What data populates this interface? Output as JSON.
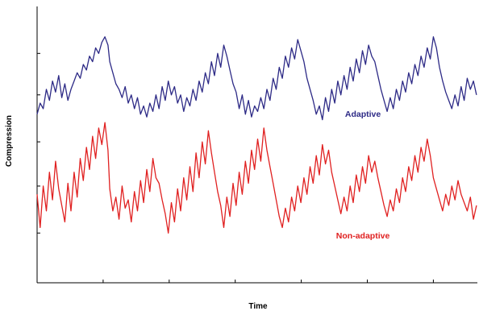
{
  "chart_data": {
    "type": "line",
    "xlabel": "Time",
    "ylabel": "Compression",
    "xlim": [
      0,
      100
    ],
    "ylim": [
      0,
      100
    ],
    "x_ticks": [
      15,
      30,
      45,
      60,
      75,
      90
    ],
    "y_ticks": [
      18,
      35,
      51,
      68,
      83
    ],
    "grid": false,
    "series": [
      {
        "name": "Adaptive",
        "color": "#2d2a86",
        "x": [
          0,
          0.7,
          1.4,
          2.1,
          2.8,
          3.5,
          4.2,
          4.9,
          5.6,
          6.3,
          7,
          7.7,
          8.4,
          9.1,
          9.8,
          10.5,
          11.2,
          11.9,
          12.6,
          13.3,
          14,
          14.7,
          15.4,
          16.1,
          16.5,
          17.2,
          17.9,
          18.6,
          19.3,
          20,
          20.7,
          21.4,
          22.1,
          22.8,
          23.5,
          24.2,
          24.9,
          25.6,
          26.3,
          27,
          27.7,
          28.4,
          29.1,
          29.8,
          30.5,
          31.2,
          31.9,
          32.6,
          33.3,
          34,
          34.7,
          35.4,
          36.1,
          36.8,
          37.5,
          38.2,
          38.9,
          39.6,
          40.3,
          41,
          41.7,
          42.4,
          43.1,
          43.8,
          44.5,
          45.2,
          45.9,
          46.6,
          47.3,
          48,
          48.7,
          49.4,
          50.1,
          50.8,
          51.5,
          52.2,
          52.9,
          53.6,
          54.3,
          55,
          55.7,
          56.4,
          57.1,
          57.8,
          58.5,
          59.2,
          59.9,
          60.6,
          61.3,
          62,
          62.7,
          63.4,
          64.1,
          64.8,
          65.5,
          66.2,
          66.9,
          67.6,
          68.3,
          69,
          69.7,
          70.4,
          71.1,
          71.8,
          72.5,
          73.2,
          73.9,
          74.6,
          75.3,
          76,
          76.7,
          77.4,
          78.1,
          78.8,
          79.5,
          80.2,
          80.9,
          81.6,
          82.3,
          83,
          83.7,
          84.4,
          85.1,
          85.8,
          86.5,
          87.2,
          87.9,
          88.6,
          89.3,
          90,
          90.7,
          91.4,
          92.1,
          92.8,
          93.5,
          94.2,
          94.9,
          95.6,
          96.3,
          97,
          97.7,
          98.4,
          99.1,
          99.8
        ],
        "values": [
          61,
          65,
          63,
          70,
          66,
          73,
          69,
          75,
          67,
          72,
          66,
          70,
          73,
          76,
          74,
          79,
          77,
          82,
          80,
          85,
          83,
          87,
          89,
          86,
          80,
          76,
          72,
          70,
          67,
          71,
          65,
          68,
          63,
          67,
          61,
          64,
          60,
          65,
          62,
          68,
          63,
          71,
          66,
          73,
          68,
          71,
          65,
          68,
          62,
          67,
          64,
          70,
          66,
          73,
          69,
          76,
          72,
          80,
          75,
          83,
          78,
          86,
          82,
          77,
          72,
          69,
          63,
          68,
          61,
          66,
          60,
          64,
          62,
          67,
          63,
          70,
          66,
          74,
          70,
          78,
          74,
          82,
          78,
          85,
          81,
          88,
          84,
          80,
          74,
          70,
          66,
          61,
          64,
          59,
          67,
          62,
          70,
          65,
          73,
          68,
          75,
          70,
          78,
          73,
          81,
          76,
          84,
          79,
          86,
          82,
          80,
          75,
          70,
          66,
          62,
          67,
          63,
          70,
          66,
          73,
          69,
          76,
          72,
          79,
          75,
          82,
          78,
          85,
          81,
          89,
          85,
          78,
          73,
          69,
          66,
          63,
          68,
          64,
          71,
          66,
          74,
          70,
          73,
          68
        ]
      },
      {
        "name": "Non-adaptive",
        "color": "#e02020",
        "x": [
          0,
          0.7,
          1.4,
          2.1,
          2.8,
          3.5,
          4.2,
          4.9,
          5.6,
          6.3,
          7,
          7.7,
          8.4,
          9.1,
          9.8,
          10.5,
          11.2,
          11.9,
          12.6,
          13.3,
          14,
          14.7,
          15.4,
          16.1,
          16.5,
          17.2,
          17.9,
          18.6,
          19.3,
          20,
          20.7,
          21.4,
          22.1,
          22.8,
          23.5,
          24.2,
          24.9,
          25.6,
          26.3,
          27,
          27.7,
          28.4,
          29.1,
          29.8,
          30.5,
          31.2,
          31.9,
          32.6,
          33.3,
          34,
          34.7,
          35.4,
          36.1,
          36.8,
          37.5,
          38.2,
          38.9,
          39.6,
          40.3,
          41,
          41.7,
          42.4,
          43.1,
          43.8,
          44.5,
          45.2,
          45.9,
          46.6,
          47.3,
          48,
          48.7,
          49.4,
          50.1,
          50.8,
          51.5,
          52.2,
          52.9,
          53.6,
          54.3,
          55,
          55.7,
          56.4,
          57.1,
          57.8,
          58.5,
          59.2,
          59.9,
          60.6,
          61.3,
          62,
          62.7,
          63.4,
          64.1,
          64.8,
          65.5,
          66.2,
          66.9,
          67.6,
          68.3,
          69,
          69.7,
          70.4,
          71.1,
          71.8,
          72.5,
          73.2,
          73.9,
          74.6,
          75.3,
          76,
          76.7,
          77.4,
          78.1,
          78.8,
          79.5,
          80.2,
          80.9,
          81.6,
          82.3,
          83,
          83.7,
          84.4,
          85.1,
          85.8,
          86.5,
          87.2,
          87.9,
          88.6,
          89.3,
          90,
          90.7,
          91.4,
          92.1,
          92.8,
          93.5,
          94.2,
          94.9,
          95.6,
          96.3,
          97,
          97.7,
          98.4,
          99.1,
          99.8
        ],
        "values": [
          32,
          20,
          35,
          26,
          40,
          30,
          44,
          34,
          28,
          22,
          36,
          26,
          40,
          31,
          45,
          37,
          49,
          41,
          53,
          45,
          56,
          50,
          58,
          48,
          34,
          26,
          31,
          23,
          35,
          27,
          30,
          22,
          33,
          26,
          37,
          29,
          41,
          33,
          45,
          38,
          36,
          30,
          25,
          18,
          29,
          22,
          34,
          26,
          38,
          30,
          42,
          33,
          47,
          38,
          51,
          43,
          55,
          47,
          40,
          33,
          28,
          20,
          31,
          24,
          36,
          28,
          40,
          32,
          44,
          36,
          48,
          41,
          52,
          44,
          56,
          48,
          42,
          36,
          30,
          24,
          20,
          27,
          22,
          31,
          26,
          35,
          29,
          38,
          32,
          42,
          36,
          46,
          39,
          50,
          43,
          48,
          40,
          35,
          30,
          25,
          31,
          26,
          35,
          29,
          39,
          33,
          42,
          36,
          46,
          40,
          44,
          38,
          33,
          28,
          24,
          30,
          26,
          34,
          29,
          38,
          33,
          42,
          37,
          46,
          40,
          49,
          44,
          52,
          46,
          38,
          34,
          30,
          26,
          32,
          28,
          35,
          30,
          37,
          32,
          29,
          26,
          31,
          23,
          28
        ]
      }
    ],
    "annotations": [
      {
        "text": "Adaptive",
        "color": "#2d2a86",
        "x": 74,
        "y": 60
      },
      {
        "text": "Non-adaptive",
        "color": "#e02020",
        "x": 74,
        "y": 16
      }
    ]
  }
}
